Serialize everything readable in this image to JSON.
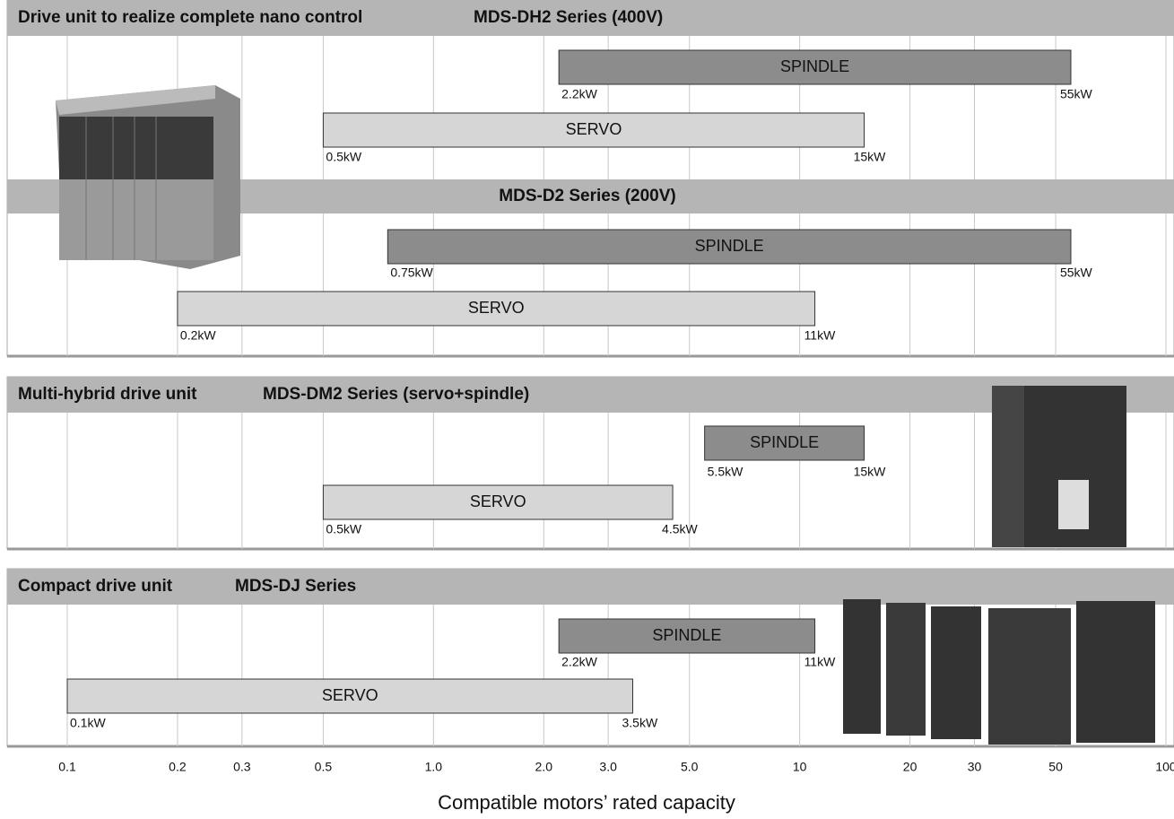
{
  "chart_data": {
    "type": "range-bar",
    "xlabel": "Compatible motors’ rated capacity",
    "xscale": "log",
    "xlim": [
      0.1,
      100
    ],
    "xticks": [
      0.1,
      0.2,
      0.3,
      0.5,
      {
        "value": 1,
        "label": "1.0"
      },
      {
        "value": 2,
        "label": "2.0"
      },
      {
        "value": 3,
        "label": "3.0"
      },
      {
        "value": 5,
        "label": "5.0"
      },
      10,
      20,
      30,
      50,
      100
    ],
    "grid": true,
    "groups": [
      {
        "title": "Drive unit to realize complete nano control",
        "subtitle": "MDS-DH2 Series (400V)",
        "bars": [
          {
            "name": "SPINDLE",
            "color": "#8c8c8c",
            "values": [
              2.2,
              55
            ],
            "value_labels": [
              "2.2kW",
              "55kW"
            ]
          },
          {
            "name": "SERVO",
            "color": "#d6d6d6",
            "values": [
              0.5,
              15
            ],
            "value_labels": [
              "0.5kW",
              "15kW"
            ]
          }
        ]
      },
      {
        "title": "MDS-D2 Series (200V)",
        "bars": [
          {
            "name": "SPINDLE",
            "color": "#8c8c8c",
            "values": [
              0.75,
              55
            ],
            "value_labels": [
              "0.75kW",
              "55kW"
            ]
          },
          {
            "name": "SERVO",
            "color": "#d6d6d6",
            "values": [
              0.2,
              11
            ],
            "value_labels": [
              "0.2kW",
              "11kW"
            ]
          }
        ]
      },
      {
        "title": "Multi-hybrid drive unit",
        "subtitle": "MDS-DM2 Series (servo+spindle)",
        "bars": [
          {
            "name": "SPINDLE",
            "color": "#8c8c8c",
            "values": [
              5.5,
              15
            ],
            "value_labels": [
              "5.5kW",
              "15kW"
            ]
          },
          {
            "name": "SERVO",
            "color": "#d6d6d6",
            "values": [
              0.5,
              4.5
            ],
            "value_labels": [
              "0.5kW",
              "4.5kW"
            ]
          }
        ]
      },
      {
        "title": "Compact drive unit",
        "subtitle": "MDS-DJ Series",
        "bars": [
          {
            "name": "SPINDLE",
            "color": "#8c8c8c",
            "values": [
              2.2,
              11
            ],
            "value_labels": [
              "2.2kW",
              "11kW"
            ]
          },
          {
            "name": "SERVO",
            "color": "#d6d6d6",
            "values": [
              0.1,
              3.5
            ],
            "value_labels": [
              "0.1kW",
              "3.5kW"
            ]
          }
        ]
      }
    ]
  }
}
